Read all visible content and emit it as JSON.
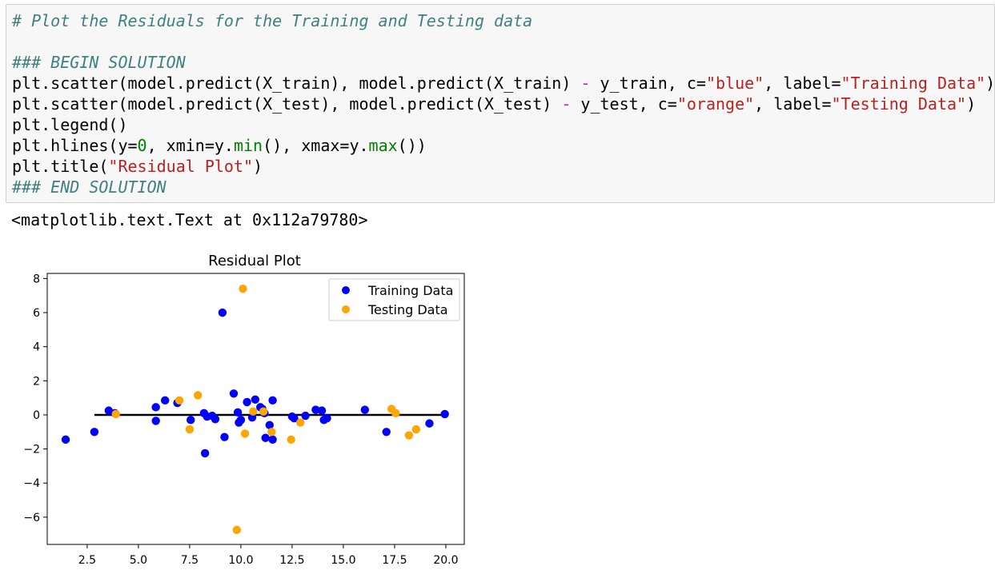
{
  "cell": {
    "lines": [
      {
        "segments": [
          {
            "t": "# Plot the Residuals for the Training and Testing data",
            "c": "cm"
          }
        ]
      },
      {
        "segments": [
          {
            "t": "",
            "c": ""
          }
        ]
      },
      {
        "segments": [
          {
            "t": "### BEGIN SOLUTION",
            "c": "cm"
          }
        ]
      },
      {
        "segments": [
          {
            "t": "plt.scatter(model.predict(X_train), model.predict(X_train) ",
            "c": ""
          },
          {
            "t": "-",
            "c": "op"
          },
          {
            "t": " y_train, c=",
            "c": ""
          },
          {
            "t": "\"blue\"",
            "c": "str"
          },
          {
            "t": ", label=",
            "c": ""
          },
          {
            "t": "\"Training Data\"",
            "c": "str"
          },
          {
            "t": ")",
            "c": ""
          }
        ]
      },
      {
        "segments": [
          {
            "t": "plt.scatter(model.predict(X_test), model.predict(X_test) ",
            "c": ""
          },
          {
            "t": "-",
            "c": "op"
          },
          {
            "t": " y_test, c=",
            "c": ""
          },
          {
            "t": "\"orange\"",
            "c": "str"
          },
          {
            "t": ", label=",
            "c": ""
          },
          {
            "t": "\"Testing Data\"",
            "c": "str"
          },
          {
            "t": ")",
            "c": ""
          }
        ]
      },
      {
        "segments": [
          {
            "t": "plt.legend()",
            "c": ""
          }
        ]
      },
      {
        "segments": [
          {
            "t": "plt.hlines(y=",
            "c": ""
          },
          {
            "t": "0",
            "c": "num"
          },
          {
            "t": ", xmin=y.",
            "c": ""
          },
          {
            "t": "min",
            "c": "fn"
          },
          {
            "t": "(), xmax=y.",
            "c": ""
          },
          {
            "t": "max",
            "c": "fn"
          },
          {
            "t": "())",
            "c": ""
          }
        ]
      },
      {
        "segments": [
          {
            "t": "plt.title(",
            "c": ""
          },
          {
            "t": "\"Residual Plot\"",
            "c": "str"
          },
          {
            "t": ")",
            "c": ""
          }
        ]
      },
      {
        "segments": [
          {
            "t": "### END SOLUTION",
            "c": "cm"
          }
        ]
      }
    ]
  },
  "output": {
    "text": "<matplotlib.text.Text at 0x112a79780>"
  },
  "chart_data": {
    "type": "scatter",
    "title": "Residual Plot",
    "xlabel": "",
    "ylabel": "",
    "xlim": [
      0.55,
      20.9
    ],
    "ylim": [
      -7.6,
      8.3
    ],
    "xticks": [
      2.5,
      5.0,
      7.5,
      10.0,
      12.5,
      15.0,
      17.5,
      20.0
    ],
    "xtick_labels": [
      "2.5",
      "5.0",
      "7.5",
      "10.0",
      "12.5",
      "15.0",
      "17.5",
      "20.0"
    ],
    "yticks": [
      8,
      6,
      4,
      2,
      0,
      -2,
      -4,
      -6
    ],
    "ytick_labels": [
      "8",
      "6",
      "4",
      "2",
      "0",
      "−2",
      "−4",
      "−6"
    ],
    "legend_position": "top-right",
    "hline": {
      "y": 0,
      "xmin": 2.85,
      "xmax": 20.0,
      "color": "#000000"
    },
    "series": [
      {
        "name": "Training Data",
        "color": "#0000ff",
        "points": [
          [
            1.45,
            -1.45
          ],
          [
            2.85,
            -1.0
          ],
          [
            3.55,
            0.25
          ],
          [
            3.85,
            0.1
          ],
          [
            5.85,
            0.45
          ],
          [
            5.85,
            -0.35
          ],
          [
            6.3,
            0.85
          ],
          [
            6.9,
            0.7
          ],
          [
            7.55,
            -0.3
          ],
          [
            8.2,
            0.1
          ],
          [
            8.25,
            -2.25
          ],
          [
            8.35,
            -0.1
          ],
          [
            8.6,
            -0.05
          ],
          [
            8.75,
            -0.25
          ],
          [
            9.1,
            6.0
          ],
          [
            9.2,
            -1.3
          ],
          [
            9.65,
            1.25
          ],
          [
            9.85,
            0.15
          ],
          [
            9.9,
            -0.45
          ],
          [
            10.0,
            -0.3
          ],
          [
            10.3,
            0.75
          ],
          [
            10.55,
            -0.15
          ],
          [
            10.7,
            0.9
          ],
          [
            10.95,
            0.45
          ],
          [
            11.05,
            0.35
          ],
          [
            11.15,
            0.1
          ],
          [
            11.2,
            -1.35
          ],
          [
            11.4,
            -0.6
          ],
          [
            11.55,
            0.85
          ],
          [
            11.55,
            -1.45
          ],
          [
            12.5,
            -0.1
          ],
          [
            12.6,
            -0.2
          ],
          [
            13.15,
            -0.05
          ],
          [
            13.65,
            0.3
          ],
          [
            13.95,
            0.25
          ],
          [
            14.05,
            -0.3
          ],
          [
            14.2,
            -0.2
          ],
          [
            16.05,
            0.3
          ],
          [
            17.1,
            -1.0
          ],
          [
            19.2,
            -0.5
          ],
          [
            19.95,
            0.05
          ]
        ]
      },
      {
        "name": "Testing Data",
        "color": "#ffa500",
        "points": [
          [
            3.9,
            0.05
          ],
          [
            7.0,
            0.85
          ],
          [
            7.5,
            -0.85
          ],
          [
            7.9,
            1.15
          ],
          [
            9.8,
            -6.75
          ],
          [
            10.1,
            7.4
          ],
          [
            10.2,
            -1.1
          ],
          [
            10.6,
            0.2
          ],
          [
            11.1,
            0.2
          ],
          [
            11.5,
            -1.0
          ],
          [
            12.45,
            -1.45
          ],
          [
            12.9,
            -0.45
          ],
          [
            17.35,
            0.35
          ],
          [
            17.55,
            0.1
          ],
          [
            18.2,
            -1.2
          ],
          [
            18.55,
            -0.85
          ]
        ]
      }
    ]
  }
}
